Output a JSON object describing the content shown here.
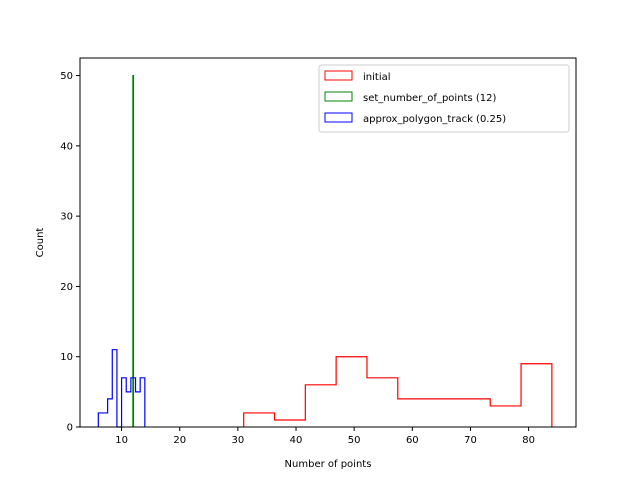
{
  "chart_data": {
    "type": "histogram-step",
    "xlabel": "Number of points",
    "ylabel": "Count",
    "xlim": [
      2.85,
      88.15
    ],
    "ylim": [
      0,
      52.5
    ],
    "xticks": [
      10,
      20,
      30,
      40,
      50,
      60,
      70,
      80
    ],
    "yticks": [
      0,
      10,
      20,
      30,
      40,
      50
    ],
    "legend_location": "upper right",
    "series": [
      {
        "name": "initial",
        "color": "#ff0000",
        "bin_edges": [
          31.0,
          36.3,
          41.6,
          46.9,
          52.2,
          57.5,
          62.8,
          68.1,
          73.4,
          78.7,
          84.0
        ],
        "counts": [
          2,
          1,
          6,
          10,
          7,
          4,
          4,
          4,
          3,
          9
        ]
      },
      {
        "name": "set_number_of_points (12)",
        "color": "#008000",
        "bin_edges": [
          11.95,
          12.05
        ],
        "counts": [
          50
        ]
      },
      {
        "name": "approx_polygon_track (0.25)",
        "color": "#0000ff",
        "bin_edges": [
          6.0,
          7.6,
          8.4,
          9.2,
          10.0,
          10.8,
          11.6,
          12.4,
          13.2,
          14.0
        ],
        "counts": [
          2,
          4,
          11,
          0,
          7,
          5,
          7,
          5,
          7
        ]
      }
    ]
  }
}
